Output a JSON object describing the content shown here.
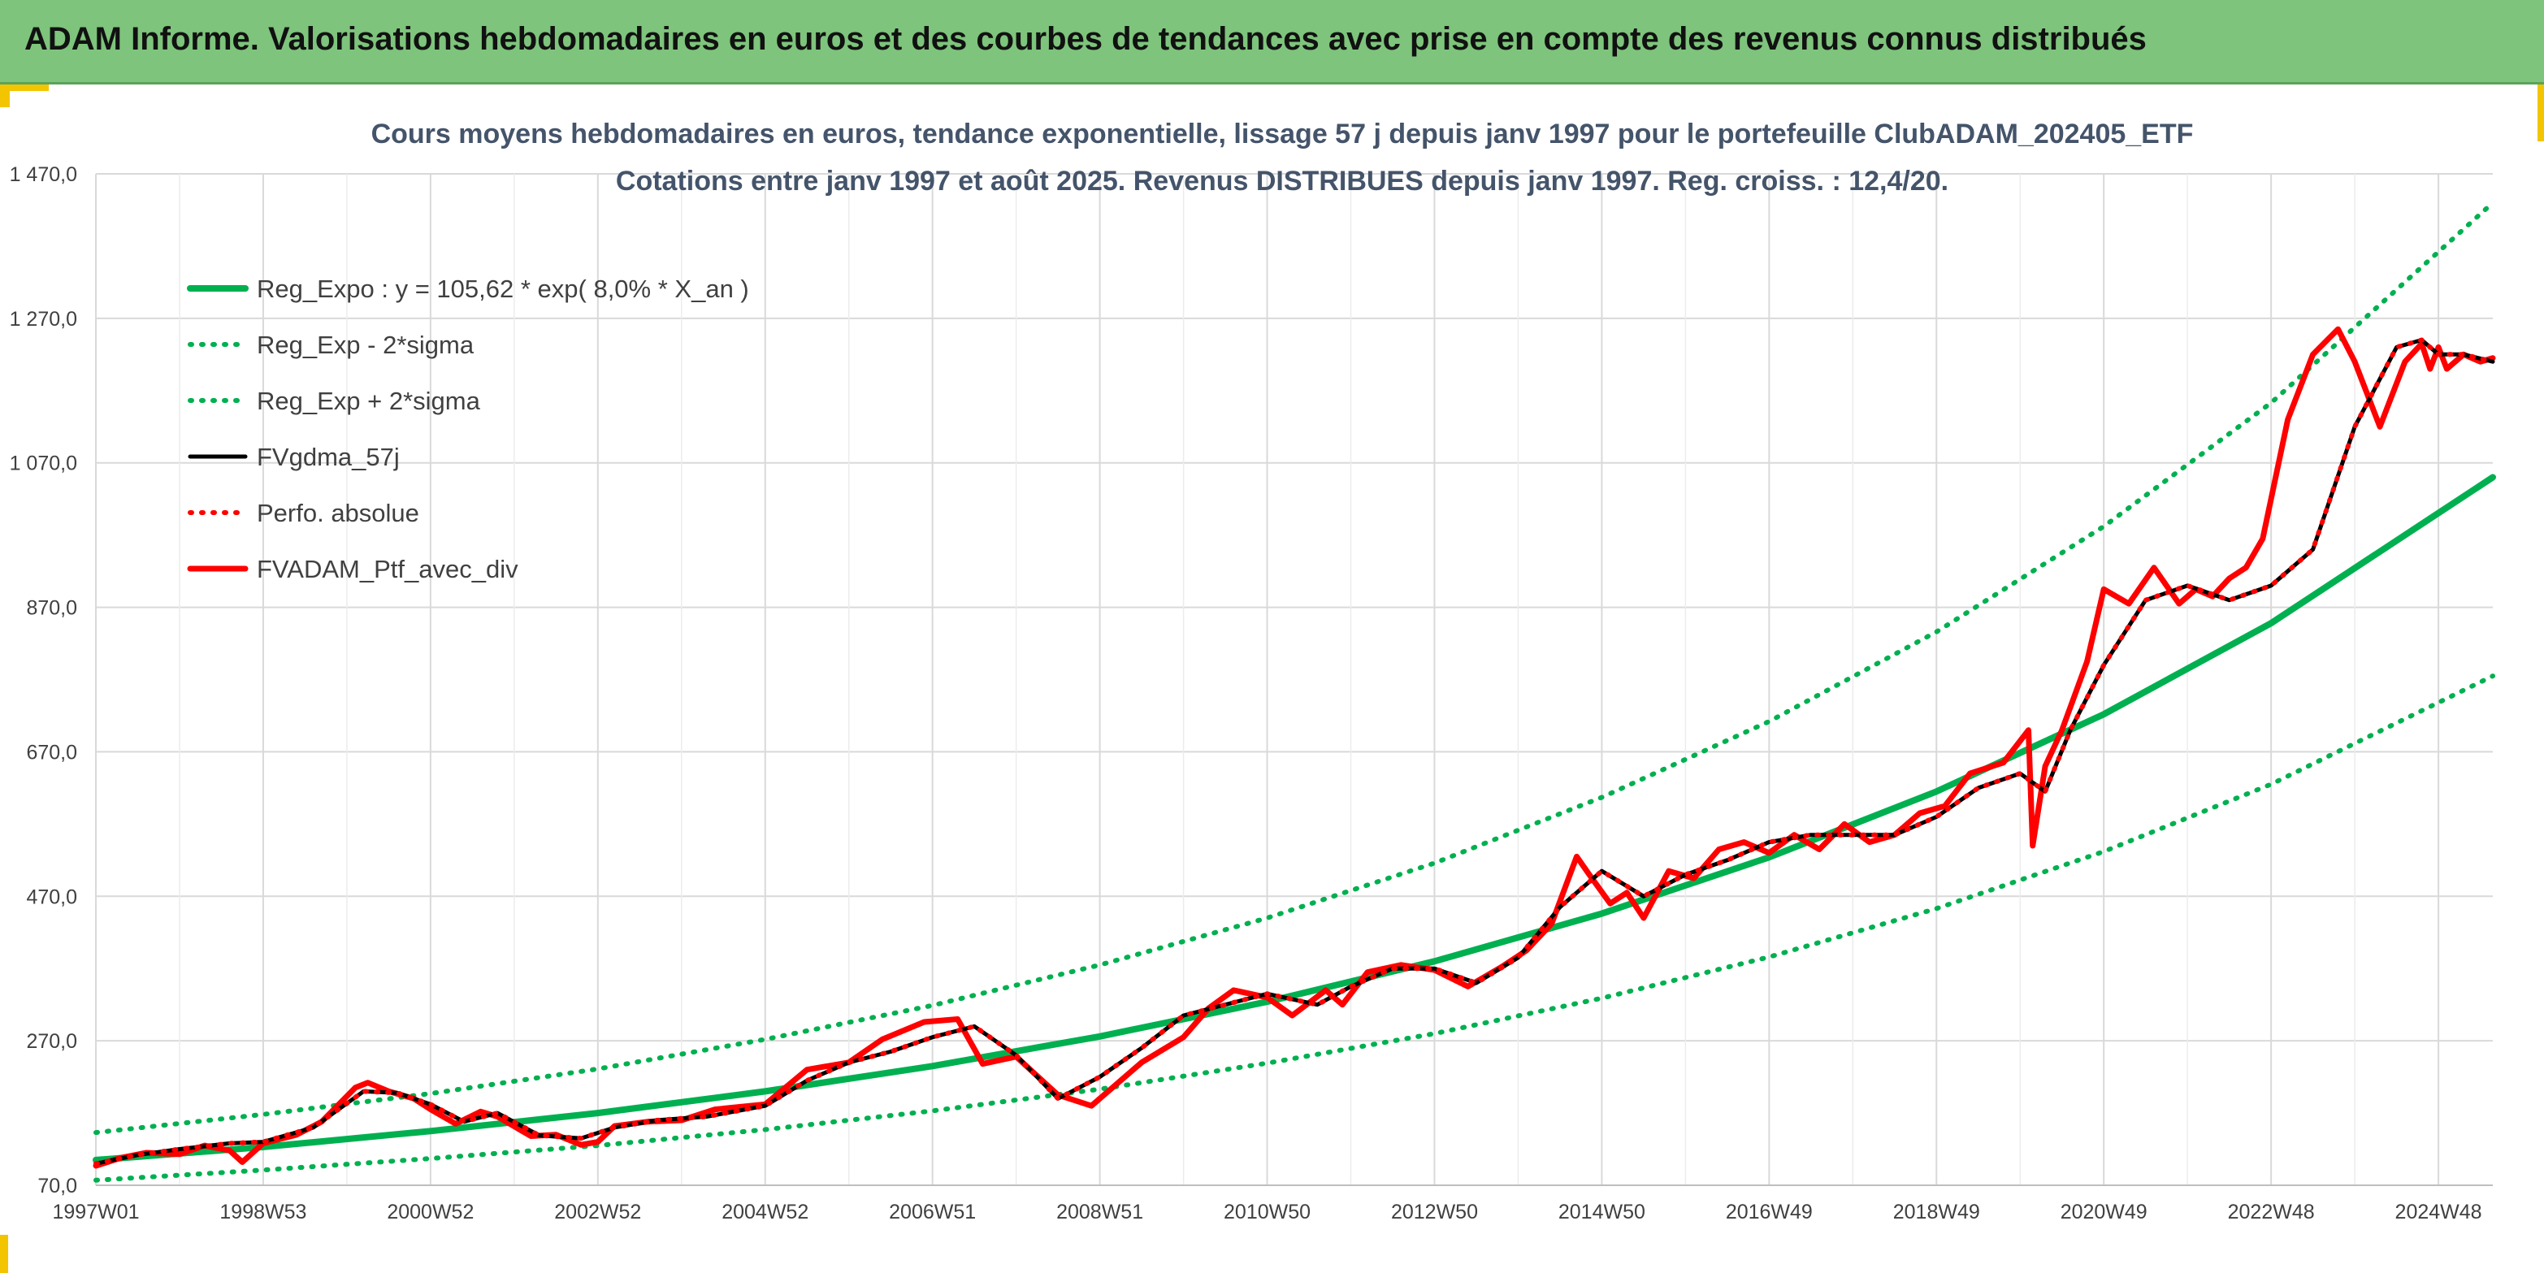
{
  "banner": {
    "title": "ADAM Informe. Valorisations hebdomadaires en euros et des courbes de tendances avec prise en compte des revenus connus distribués"
  },
  "colors": {
    "banner_bg": "#7ec47c",
    "accent_yellow": "#f2c500",
    "trend_green": "#00b050",
    "price_red": "#ff0000",
    "smooth_black": "#000000"
  },
  "chart_data": {
    "type": "line",
    "title": [
      "Cours moyens hebdomadaires en euros, tendance exponentielle, lissage 57 j depuis janv 1997 pour le portefeuille ClubADAM_202405_ETF",
      "Cotations entre janv 1997 et août 2025. Revenus DISTRIBUES depuis janv 1997. Reg. croiss. : 12,4/20."
    ],
    "xlabel": "",
    "ylabel": "",
    "ylim": [
      70,
      1470
    ],
    "yticks": [
      70,
      270,
      470,
      670,
      870,
      1070,
      1270,
      1470
    ],
    "ytick_labels": [
      "70,0",
      "270,0",
      "470,0",
      "670,0",
      "870,0",
      "1 070,0",
      "1 270,0",
      "1 470,0"
    ],
    "xlim": [
      1997.0,
      2025.65
    ],
    "xtick_labels": [
      "1997W01",
      "1998W53",
      "2000W52",
      "2002W52",
      "2004W52",
      "2006W51",
      "2008W51",
      "2010W50",
      "2012W50",
      "2014W50",
      "2016W49",
      "2018W49",
      "2020W49",
      "2022W48",
      "2024W48"
    ],
    "xtick_years": [
      1997.0,
      1999.0,
      2001.0,
      2003.0,
      2005.0,
      2007.0,
      2009.0,
      2011.0,
      2013.0,
      2015.0,
      2017.0,
      2019.0,
      2021.0,
      2023.0,
      2025.0
    ],
    "grid": true,
    "legend_position": "top-left",
    "series": [
      {
        "name": "Reg_Expo : y = 105,62 * exp( 8,0% *  X_an )",
        "style": "solid",
        "color": "#00b050",
        "x": [
          1997,
          1999,
          2001,
          2003,
          2005,
          2007,
          2009,
          2011,
          2013,
          2015,
          2017,
          2019,
          2021,
          2023,
          2025.65
        ],
        "values": [
          105,
          123,
          145,
          170,
          200,
          235,
          276,
          324,
          380,
          446,
          524,
          615,
          722,
          848,
          1050
        ]
      },
      {
        "name": "Reg_Exp - 2*sigma",
        "style": "dotted",
        "color": "#00b050",
        "x": [
          1997,
          1999,
          2001,
          2003,
          2005,
          2007,
          2009,
          2011,
          2013,
          2015,
          2017,
          2019,
          2021,
          2023,
          2025.65
        ],
        "values": [
          77,
          91,
          107,
          125,
          147,
          173,
          203,
          239,
          280,
          329,
          386,
          453,
          532,
          625,
          775
        ]
      },
      {
        "name": "Reg_Exp + 2*sigma",
        "style": "dotted",
        "color": "#00b050",
        "x": [
          1997,
          1999,
          2001,
          2003,
          2005,
          2007,
          2009,
          2011,
          2013,
          2015,
          2017,
          2019,
          2021,
          2023,
          2025.65
        ],
        "values": [
          143,
          168,
          197,
          231,
          272,
          319,
          375,
          440,
          516,
          607,
          712,
          836,
          982,
          1153,
          1430
        ]
      },
      {
        "name": "FVgdma_57j",
        "style": "solid",
        "color": "#000000",
        "x": [
          1997.0,
          1997.5,
          1998.0,
          1998.6,
          1999.0,
          1999.6,
          2000.2,
          2000.6,
          2001.0,
          2001.4,
          2001.8,
          2002.3,
          2002.8,
          2003.2,
          2003.7,
          2004.3,
          2005.0,
          2005.5,
          2006.0,
          2006.5,
          2007.0,
          2007.5,
          2008.0,
          2008.5,
          2009.0,
          2009.5,
          2010.0,
          2010.5,
          2011.0,
          2011.6,
          2012.0,
          2012.5,
          2013.0,
          2013.5,
          2014.0,
          2014.5,
          2015.0,
          2015.5,
          2016.0,
          2016.5,
          2017.0,
          2017.5,
          2018.0,
          2018.5,
          2019.0,
          2019.5,
          2020.0,
          2020.3,
          2020.6,
          2021.0,
          2021.5,
          2022.0,
          2022.5,
          2023.0,
          2023.5,
          2024.0,
          2024.5,
          2024.8,
          2025.0,
          2025.3,
          2025.65
        ],
        "values": [
          100,
          112,
          120,
          128,
          130,
          150,
          200,
          198,
          182,
          158,
          170,
          139,
          135,
          150,
          160,
          165,
          180,
          215,
          240,
          255,
          275,
          290,
          250,
          190,
          220,
          260,
          305,
          320,
          335,
          320,
          345,
          370,
          370,
          350,
          385,
          455,
          505,
          470,
          500,
          520,
          545,
          555,
          555,
          555,
          580,
          620,
          640,
          615,
          700,
          790,
          880,
          900,
          880,
          900,
          950,
          1120,
          1230,
          1240,
          1220,
          1220,
          1210
        ]
      },
      {
        "name": "Perfo. absolue",
        "style": "dotted",
        "color": "#ff0000",
        "x": [
          1997.0,
          1997.5,
          1998.0,
          1998.6,
          1999.0,
          1999.6,
          2000.2,
          2000.6,
          2001.0,
          2001.4,
          2001.8,
          2002.3,
          2002.8,
          2003.2,
          2003.7,
          2004.3,
          2005.0,
          2005.5,
          2006.0,
          2006.5,
          2007.0,
          2007.5,
          2008.0,
          2008.5,
          2009.0,
          2009.5,
          2010.0,
          2010.5,
          2011.0,
          2011.6,
          2012.0,
          2012.5,
          2013.0,
          2013.5,
          2014.0,
          2014.5,
          2015.0,
          2015.5,
          2016.0,
          2016.5,
          2017.0,
          2017.5,
          2018.0,
          2018.5,
          2019.0,
          2019.5,
          2020.0,
          2020.3,
          2020.6,
          2021.0,
          2021.5,
          2022.0,
          2022.5,
          2023.0,
          2023.5,
          2024.0,
          2024.5,
          2024.8,
          2025.0,
          2025.3,
          2025.65
        ],
        "values": [
          100,
          112,
          120,
          128,
          130,
          150,
          200,
          198,
          182,
          158,
          170,
          139,
          135,
          150,
          160,
          165,
          180,
          215,
          240,
          255,
          275,
          290,
          250,
          190,
          220,
          260,
          305,
          320,
          335,
          320,
          345,
          370,
          370,
          350,
          385,
          455,
          505,
          470,
          500,
          520,
          545,
          555,
          555,
          555,
          580,
          620,
          640,
          615,
          700,
          790,
          880,
          900,
          880,
          900,
          950,
          1120,
          1230,
          1240,
          1220,
          1220,
          1210
        ]
      },
      {
        "name": "FVADAM_Ptf_avec_div",
        "style": "solid",
        "color": "#ff0000",
        "x": [
          1997.0,
          1997.3,
          1997.6,
          1998.0,
          1998.3,
          1998.6,
          1998.75,
          1999.0,
          1999.4,
          1999.7,
          2000.1,
          2000.25,
          2000.5,
          2000.8,
          2001.0,
          2001.3,
          2001.6,
          2001.8,
          2002.2,
          2002.5,
          2002.8,
          2003.0,
          2003.2,
          2003.6,
          2004.0,
          2004.4,
          2005.0,
          2005.5,
          2006.0,
          2006.4,
          2006.9,
          2007.3,
          2007.6,
          2008.0,
          2008.5,
          2008.9,
          2009.1,
          2009.5,
          2010.0,
          2010.3,
          2010.6,
          2011.0,
          2011.3,
          2011.7,
          2011.9,
          2012.2,
          2012.6,
          2013.0,
          2013.4,
          2013.8,
          2014.1,
          2014.4,
          2014.7,
          2014.85,
          2015.1,
          2015.3,
          2015.5,
          2015.8,
          2016.1,
          2016.4,
          2016.7,
          2017.0,
          2017.3,
          2017.6,
          2017.9,
          2018.2,
          2018.5,
          2018.8,
          2019.1,
          2019.4,
          2019.8,
          2020.1,
          2020.15,
          2020.3,
          2020.5,
          2020.8,
          2021.0,
          2021.3,
          2021.6,
          2021.9,
          2022.1,
          2022.3,
          2022.5,
          2022.7,
          2022.9,
          2023.2,
          2023.5,
          2023.8,
          2024.0,
          2024.3,
          2024.6,
          2024.8,
          2024.9,
          2025.0,
          2025.1,
          2025.3,
          2025.5,
          2025.65
        ],
        "values": [
          97,
          108,
          115,
          113,
          125,
          118,
          102,
          128,
          140,
          158,
          205,
          212,
          200,
          190,
          175,
          155,
          172,
          165,
          138,
          140,
          126,
          130,
          152,
          158,
          160,
          175,
          182,
          230,
          240,
          272,
          296,
          300,
          238,
          248,
          195,
          180,
          200,
          240,
          275,
          315,
          340,
          330,
          305,
          340,
          320,
          365,
          375,
          368,
          345,
          372,
          395,
          432,
          525,
          500,
          460,
          475,
          440,
          505,
          495,
          535,
          545,
          530,
          555,
          535,
          570,
          545,
          555,
          585,
          595,
          640,
          655,
          700,
          540,
          650,
          700,
          795,
          895,
          875,
          925,
          875,
          895,
          885,
          910,
          925,
          965,
          1130,
          1220,
          1255,
          1210,
          1120,
          1210,
          1235,
          1200,
          1230,
          1200,
          1220,
          1210,
          1215
        ]
      }
    ]
  }
}
